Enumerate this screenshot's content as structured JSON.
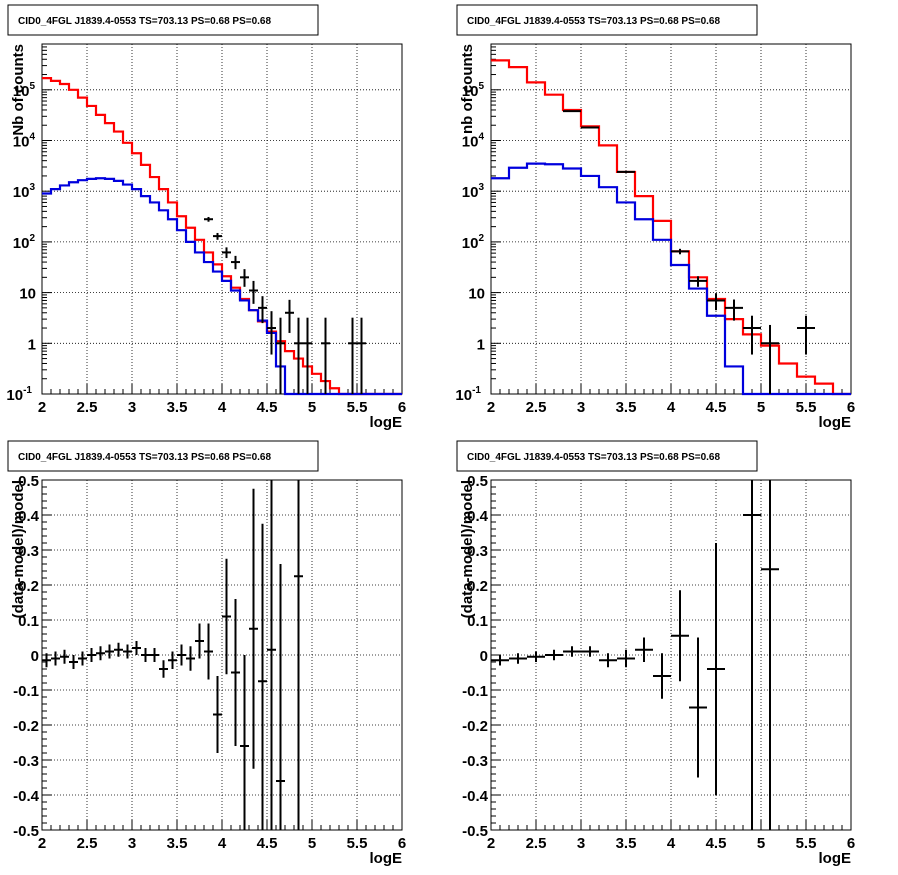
{
  "chart_data": [
    {
      "type": "line",
      "title": "CID0_4FGL J1839.4-0553 TS=703.13 PS=0.68 PS=0.68",
      "xlabel": "logE",
      "ylabel": "Nb of counts",
      "log_y": true,
      "xlim": [
        2,
        6
      ],
      "ylim": [
        0.1,
        800000
      ],
      "grid": true,
      "x_ticks": [
        "2",
        "2.5",
        "3",
        "3.5",
        "4",
        "4.5",
        "5",
        "5.5",
        "6"
      ],
      "y_ticks": [
        {
          "v": 0.1,
          "base": "10",
          "exp": "-1"
        },
        {
          "v": 1,
          "base": "1",
          "exp": ""
        },
        {
          "v": 10,
          "base": "10",
          "exp": ""
        },
        {
          "v": 100,
          "base": "10",
          "exp": "2"
        },
        {
          "v": 1000,
          "base": "10",
          "exp": "3"
        },
        {
          "v": 10000,
          "base": "10",
          "exp": "4"
        },
        {
          "v": 100000,
          "base": "10",
          "exp": "5"
        }
      ],
      "bin_edges": [
        2.0,
        2.1,
        2.2,
        2.3,
        2.4,
        2.5,
        2.6,
        2.7,
        2.8,
        2.9,
        3.0,
        3.1,
        3.2,
        3.3,
        3.4,
        3.5,
        3.6,
        3.7,
        3.8,
        3.9,
        4.0,
        4.1,
        4.2,
        4.3,
        4.4,
        4.5,
        4.6,
        4.7,
        4.8,
        4.9,
        5.0,
        5.1,
        5.2,
        5.3,
        5.4,
        5.5,
        5.6,
        5.7,
        5.8,
        5.9,
        6.0
      ],
      "series": [
        {
          "color": "#ff0000",
          "values": [
            170000,
            150000,
            130000,
            100000,
            70000,
            48000,
            32000,
            22000,
            15000,
            9000,
            5600,
            3300,
            1900,
            1100,
            600,
            320,
            190,
            110,
            62,
            36,
            21,
            12.5,
            7.5,
            4.5,
            2.7,
            1.7,
            1.1,
            0.7,
            0.5,
            0.35,
            0.25,
            0.18,
            0.13,
            0.1,
            0.08,
            0.07,
            0.06,
            0.06,
            0.06,
            0.06
          ]
        },
        {
          "color": "#0000dd",
          "values": [
            900,
            1100,
            1300,
            1500,
            1650,
            1750,
            1800,
            1750,
            1600,
            1350,
            1100,
            800,
            600,
            420,
            280,
            170,
            100,
            62,
            40,
            26,
            17,
            11,
            7,
            4.5,
            2.8,
            1.6,
            0.35,
            0.06,
            0.06,
            0.06,
            0.06,
            0.06,
            0.06,
            0.06,
            0.06,
            0.06,
            0.06,
            0.06,
            0.06,
            0.06
          ]
        }
      ],
      "data_points": [
        {
          "x": 3.85,
          "y": 280,
          "ylo": 250,
          "yhi": 310
        },
        {
          "x": 3.95,
          "y": 130,
          "ylo": 110,
          "yhi": 150
        },
        {
          "x": 4.05,
          "y": 62,
          "ylo": 48,
          "yhi": 78
        },
        {
          "x": 4.15,
          "y": 40,
          "ylo": 29,
          "yhi": 53
        },
        {
          "x": 4.25,
          "y": 20,
          "ylo": 13,
          "yhi": 29
        },
        {
          "x": 4.35,
          "y": 11,
          "ylo": 6,
          "yhi": 17
        },
        {
          "x": 4.45,
          "y": 5,
          "ylo": 2.5,
          "yhi": 8.5
        },
        {
          "x": 4.55,
          "y": 2,
          "ylo": 0.6,
          "yhi": 4.3
        },
        {
          "x": 4.65,
          "y": 1,
          "ylo": 0.1,
          "yhi": 3.2
        },
        {
          "x": 4.75,
          "y": 4,
          "ylo": 1.6,
          "yhi": 7.2
        },
        {
          "x": 4.85,
          "y": 1,
          "ylo": 0.1,
          "yhi": 3.2
        },
        {
          "x": 4.95,
          "y": 1,
          "ylo": 0.1,
          "yhi": 3.2
        },
        {
          "x": 5.15,
          "y": 1,
          "ylo": 0.1,
          "yhi": 3.2
        },
        {
          "x": 5.45,
          "y": 1,
          "ylo": 0.1,
          "yhi": 3.2
        },
        {
          "x": 5.55,
          "y": 1,
          "ylo": 0.1,
          "yhi": 3.2
        }
      ]
    },
    {
      "type": "line",
      "title": "CID0_4FGL J1839.4-0553 TS=703.13 PS=0.68 PS=0.68",
      "xlabel": "logE",
      "ylabel": "nb of counts",
      "log_y": true,
      "xlim": [
        2,
        6
      ],
      "ylim": [
        0.1,
        800000
      ],
      "grid": true,
      "x_ticks": [
        "2",
        "2.5",
        "3",
        "3.5",
        "4",
        "4.5",
        "5",
        "5.5",
        "6"
      ],
      "y_ticks": [
        {
          "v": 0.1,
          "base": "10",
          "exp": "-1"
        },
        {
          "v": 1,
          "base": "1",
          "exp": ""
        },
        {
          "v": 10,
          "base": "10",
          "exp": ""
        },
        {
          "v": 100,
          "base": "10",
          "exp": "2"
        },
        {
          "v": 1000,
          "base": "10",
          "exp": "3"
        },
        {
          "v": 10000,
          "base": "10",
          "exp": "4"
        },
        {
          "v": 100000,
          "base": "10",
          "exp": "5"
        }
      ],
      "bin_edges": [
        2.0,
        2.2,
        2.4,
        2.6,
        2.8,
        3.0,
        3.2,
        3.4,
        3.6,
        3.8,
        4.0,
        4.2,
        4.4,
        4.6,
        4.8,
        5.0,
        5.2,
        5.4,
        5.6,
        5.8,
        6.0
      ],
      "series": [
        {
          "color": "#ff0000",
          "values": [
            380000,
            280000,
            140000,
            80000,
            40000,
            19000,
            8000,
            2400,
            800,
            260,
            65,
            20,
            7.5,
            3,
            1.5,
            0.9,
            0.4,
            0.22,
            0.16,
            0.06
          ]
        },
        {
          "color": "#0000dd",
          "values": [
            1800,
            2900,
            3500,
            3400,
            2800,
            2000,
            1200,
            600,
            280,
            110,
            35,
            12,
            3.5,
            0.35,
            0.06,
            0.06,
            0.06,
            0.06,
            0.06,
            0.06
          ]
        }
      ],
      "data_points": [
        {
          "x": 2.9,
          "y": 38000,
          "ylo": 37000,
          "yhi": 39000
        },
        {
          "x": 3.1,
          "y": 18000,
          "ylo": 17500,
          "yhi": 18500
        },
        {
          "x": 3.5,
          "y": 2400,
          "ylo": 2300,
          "yhi": 2500
        },
        {
          "x": 4.1,
          "y": 65,
          "ylo": 57,
          "yhi": 73
        },
        {
          "x": 4.3,
          "y": 17,
          "ylo": 13,
          "yhi": 21
        },
        {
          "x": 4.5,
          "y": 7,
          "ylo": 4.5,
          "yhi": 9.7
        },
        {
          "x": 4.7,
          "y": 5,
          "ylo": 2.8,
          "yhi": 7.3
        },
        {
          "x": 4.9,
          "y": 2,
          "ylo": 0.6,
          "yhi": 3.5
        },
        {
          "x": 5.1,
          "y": 1,
          "ylo": 0.1,
          "yhi": 2.3
        },
        {
          "x": 5.5,
          "y": 2,
          "ylo": 0.6,
          "yhi": 3.5
        }
      ]
    },
    {
      "type": "scatter",
      "title": "CID0_4FGL J1839.4-0553 TS=703.13 PS=0.68 PS=0.68",
      "xlabel": "logE",
      "ylabel": "(data-model)/model",
      "log_y": false,
      "xlim": [
        2,
        6
      ],
      "ylim": [
        -0.5,
        0.5
      ],
      "grid": true,
      "x_ticks": [
        "2",
        "2.5",
        "3",
        "3.5",
        "4",
        "4.5",
        "5",
        "5.5",
        "6"
      ],
      "y_ticks": [
        "-0.5",
        "-0.4",
        "-0.3",
        "-0.2",
        "-0.1",
        "0",
        "0.1",
        "0.2",
        "0.3",
        "0.4",
        "0.5"
      ],
      "x_halfwidth": 0.05,
      "points": [
        {
          "x": 2.05,
          "y": -0.015,
          "err": 0.02
        },
        {
          "x": 2.15,
          "y": -0.01,
          "err": 0.02
        },
        {
          "x": 2.25,
          "y": -0.005,
          "err": 0.02
        },
        {
          "x": 2.35,
          "y": -0.02,
          "err": 0.02
        },
        {
          "x": 2.45,
          "y": -0.01,
          "err": 0.02
        },
        {
          "x": 2.55,
          "y": 0.0,
          "err": 0.02
        },
        {
          "x": 2.65,
          "y": 0.005,
          "err": 0.02
        },
        {
          "x": 2.75,
          "y": 0.01,
          "err": 0.02
        },
        {
          "x": 2.85,
          "y": 0.015,
          "err": 0.02
        },
        {
          "x": 2.95,
          "y": 0.01,
          "err": 0.02
        },
        {
          "x": 3.05,
          "y": 0.02,
          "err": 0.02
        },
        {
          "x": 3.15,
          "y": 0.0,
          "err": 0.02
        },
        {
          "x": 3.25,
          "y": 0.0,
          "err": 0.02
        },
        {
          "x": 3.35,
          "y": -0.04,
          "err": 0.025
        },
        {
          "x": 3.45,
          "y": -0.015,
          "err": 0.025
        },
        {
          "x": 3.55,
          "y": 0.0,
          "err": 0.03
        },
        {
          "x": 3.65,
          "y": -0.01,
          "err": 0.035
        },
        {
          "x": 3.75,
          "y": 0.04,
          "err": 0.05
        },
        {
          "x": 3.85,
          "y": 0.01,
          "err": 0.08
        },
        {
          "x": 3.95,
          "y": -0.17,
          "err": 0.11
        },
        {
          "x": 4.05,
          "y": 0.11,
          "err": 0.165
        },
        {
          "x": 4.15,
          "y": -0.05,
          "err": 0.21
        },
        {
          "x": 4.25,
          "y": -0.26,
          "err": 0.26
        },
        {
          "x": 4.35,
          "y": 0.075,
          "err": 0.4
        },
        {
          "x": 4.45,
          "y": -0.075,
          "err": 0.45
        },
        {
          "x": 4.55,
          "y": 0.015,
          "err": 0.6
        },
        {
          "x": 4.65,
          "y": -0.36,
          "err": 0.62
        },
        {
          "x": 4.85,
          "y": 0.225,
          "err": 0.8
        }
      ]
    },
    {
      "type": "scatter",
      "title": "CID0_4FGL J1839.4-0553 TS=703.13 PS=0.68 PS=0.68",
      "xlabel": "logE",
      "ylabel": "(data-model)/model",
      "log_y": false,
      "xlim": [
        2,
        6
      ],
      "ylim": [
        -0.5,
        0.5
      ],
      "grid": true,
      "x_ticks": [
        "2",
        "2.5",
        "3",
        "3.5",
        "4",
        "4.5",
        "5",
        "5.5",
        "6"
      ],
      "y_ticks": [
        "-0.5",
        "-0.4",
        "-0.3",
        "-0.2",
        "-0.1",
        "0",
        "0.1",
        "0.2",
        "0.3",
        "0.4",
        "0.5"
      ],
      "x_halfwidth": 0.1,
      "points": [
        {
          "x": 2.1,
          "y": -0.015,
          "err": 0.015
        },
        {
          "x": 2.3,
          "y": -0.01,
          "err": 0.015
        },
        {
          "x": 2.5,
          "y": -0.005,
          "err": 0.015
        },
        {
          "x": 2.7,
          "y": 0.0,
          "err": 0.015
        },
        {
          "x": 2.9,
          "y": 0.01,
          "err": 0.015
        },
        {
          "x": 3.1,
          "y": 0.01,
          "err": 0.015
        },
        {
          "x": 3.3,
          "y": -0.015,
          "err": 0.02
        },
        {
          "x": 3.5,
          "y": -0.01,
          "err": 0.025
        },
        {
          "x": 3.7,
          "y": 0.015,
          "err": 0.035
        },
        {
          "x": 3.9,
          "y": -0.06,
          "err": 0.065
        },
        {
          "x": 4.1,
          "y": 0.055,
          "err": 0.13
        },
        {
          "x": 4.3,
          "y": -0.15,
          "err": 0.2
        },
        {
          "x": 4.5,
          "y": -0.04,
          "err": 0.36
        },
        {
          "x": 4.9,
          "y": 0.4,
          "err": 0.95
        },
        {
          "x": 5.1,
          "y": 0.245,
          "err": 0.85
        }
      ]
    }
  ]
}
